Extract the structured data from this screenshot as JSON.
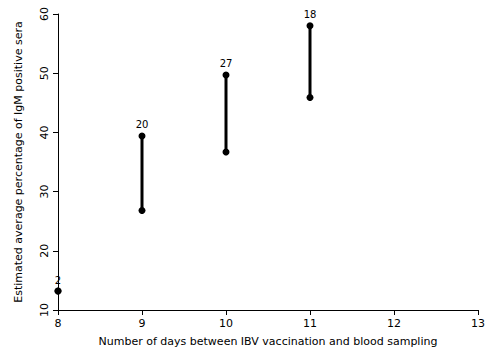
{
  "chart_data": {
    "type": "range",
    "xlabel": "Number of days between IBV vaccination and blood sampling",
    "ylabel": "Estimated average percentage of IgM positive sera",
    "x": [
      8,
      9,
      10,
      11
    ],
    "low": [
      13.2,
      26.8,
      36.7,
      45.9
    ],
    "high": [
      13.2,
      39.4,
      49.7,
      58.0
    ],
    "n": [
      2,
      20,
      27,
      18
    ],
    "color": "#000000",
    "marker": "circle",
    "xlim": [
      8,
      13
    ],
    "xticks": [
      8,
      9,
      10,
      11,
      12,
      13
    ],
    "ylim": [
      10,
      60
    ],
    "yticks": [
      10,
      20,
      30,
      40,
      50,
      60
    ],
    "grid": false
  }
}
